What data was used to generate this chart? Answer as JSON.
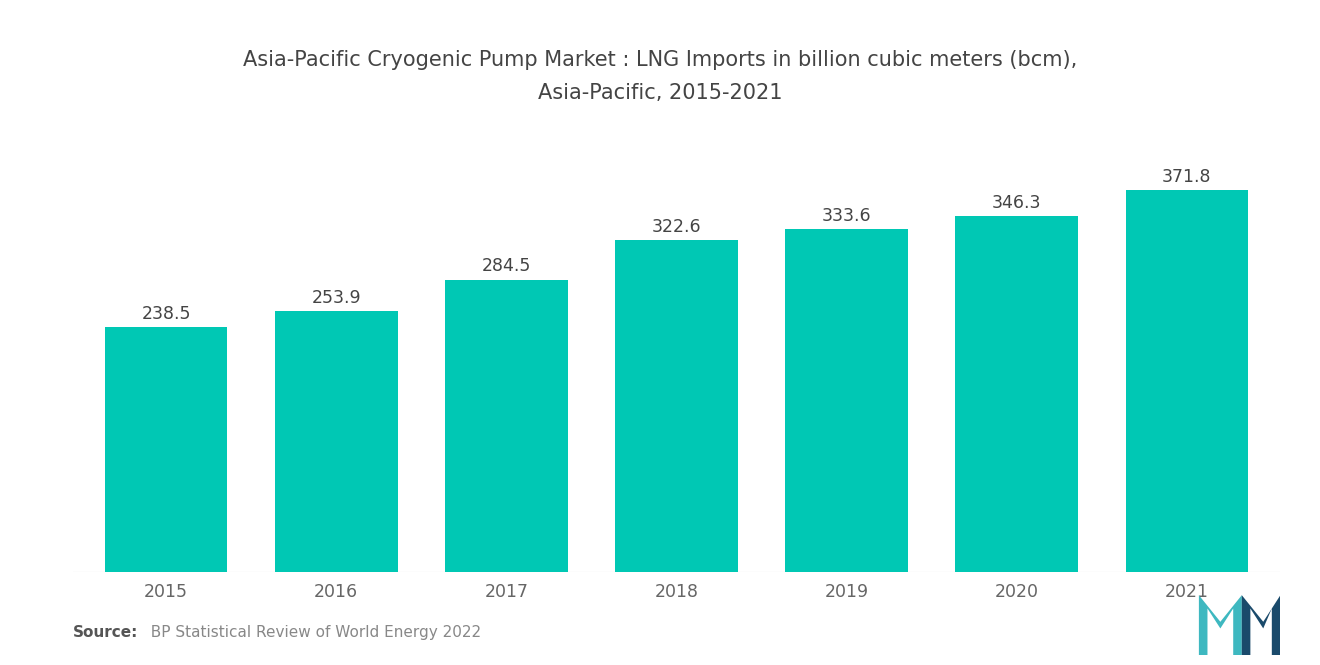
{
  "title_line1": "Asia-Pacific Cryogenic Pump Market : LNG Imports in billion cubic meters (bcm),",
  "title_line2": "Asia-Pacific, 2015-2021",
  "categories": [
    "2015",
    "2016",
    "2017",
    "2018",
    "2019",
    "2020",
    "2021"
  ],
  "values": [
    238.5,
    253.9,
    284.5,
    322.6,
    333.6,
    346.3,
    371.8
  ],
  "bar_color": "#00C8B4",
  "background_color": "#ffffff",
  "title_fontsize": 15,
  "label_fontsize": 12.5,
  "tick_fontsize": 12.5,
  "source_bold": "Source:",
  "source_rest": "  BP Statistical Review of World Energy 2022",
  "ylim": [
    0,
    440
  ],
  "bar_width": 0.72,
  "title_color": "#444444",
  "tick_color": "#666666",
  "label_color": "#444444"
}
